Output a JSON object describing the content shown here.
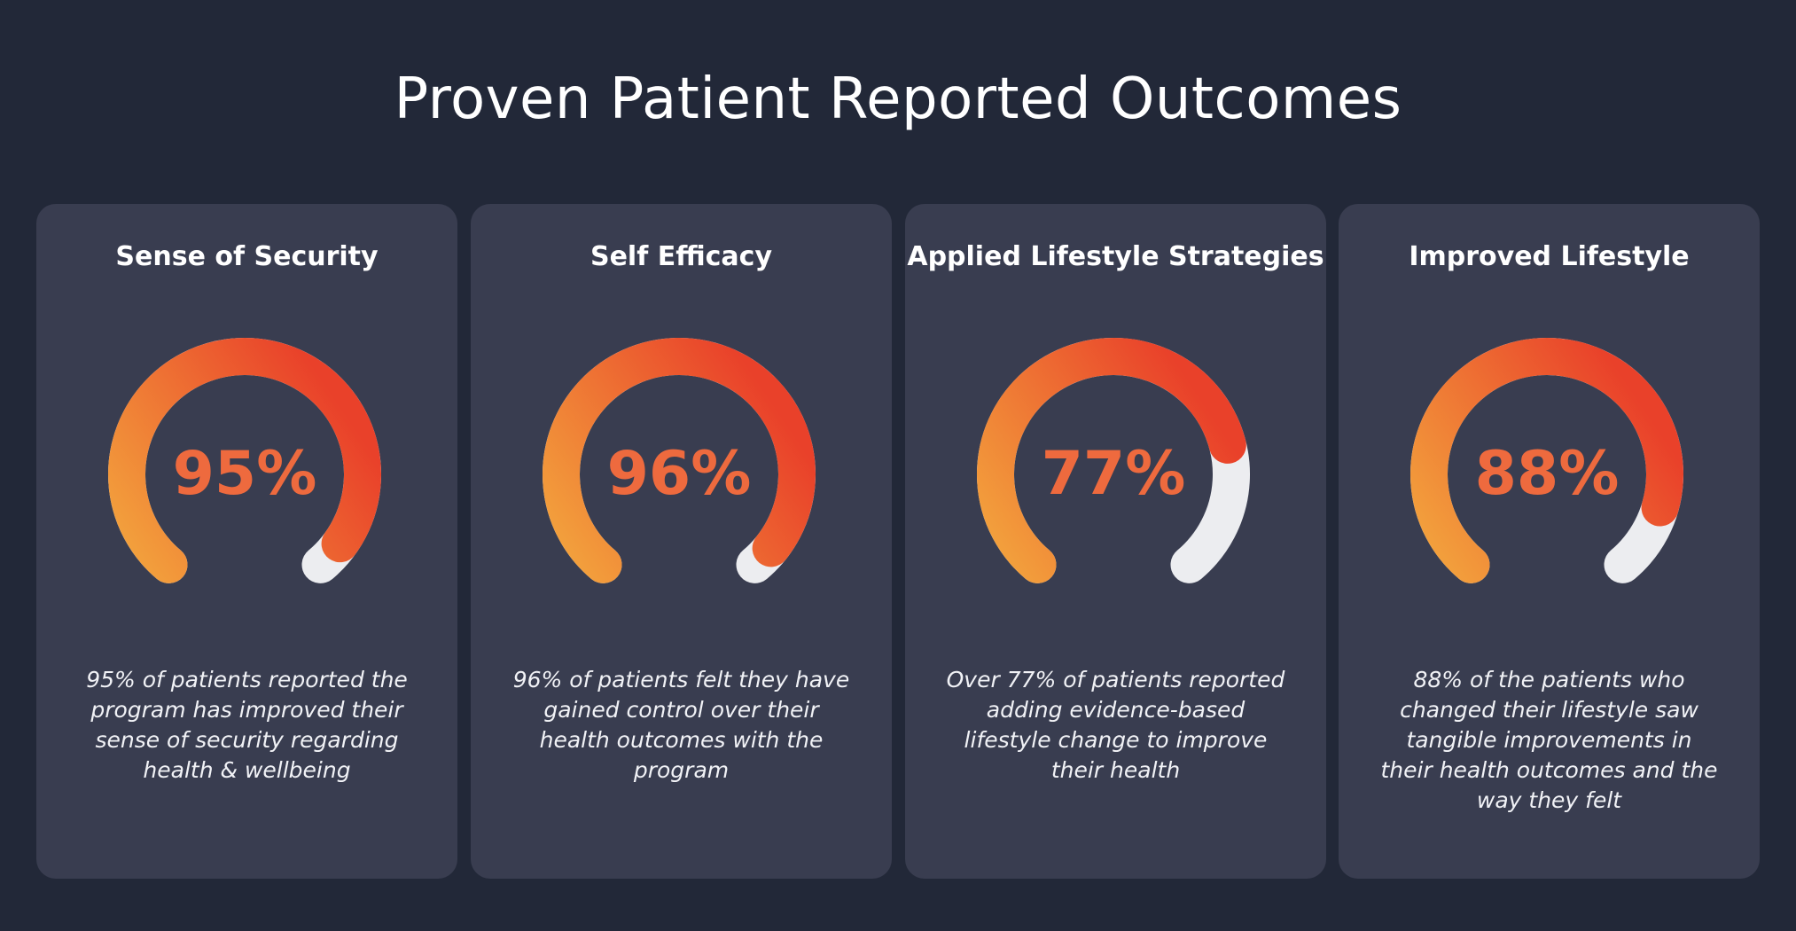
{
  "page": {
    "title": "Proven Patient Reported Outcomes"
  },
  "colors": {
    "background": "#222838",
    "card": "#393d50",
    "track": "#ecedf0",
    "gradient_start": "#f3a43d",
    "gradient_end": "#e9412a",
    "value_text": "#ee6a3e"
  },
  "cards": [
    {
      "title": "Sense of Security",
      "value": 95,
      "value_label": "95%",
      "description": "95% of patients reported the program has improved their sense of security regarding health & wellbeing"
    },
    {
      "title": "Self Efficacy",
      "value": 96,
      "value_label": "96%",
      "description": "96% of patients felt they have gained control over their health outcomes with the program"
    },
    {
      "title": "Applied Lifestyle Strategies",
      "value": 77,
      "value_label": "77%",
      "description": "Over 77% of patients reported adding evidence-based lifestyle change to improve their health"
    },
    {
      "title": "Improved Lifestyle",
      "value": 88,
      "value_label": "88%",
      "description": "88% of the patients who changed their lifestyle saw tangible improvements in their health outcomes and the way they felt"
    }
  ]
}
